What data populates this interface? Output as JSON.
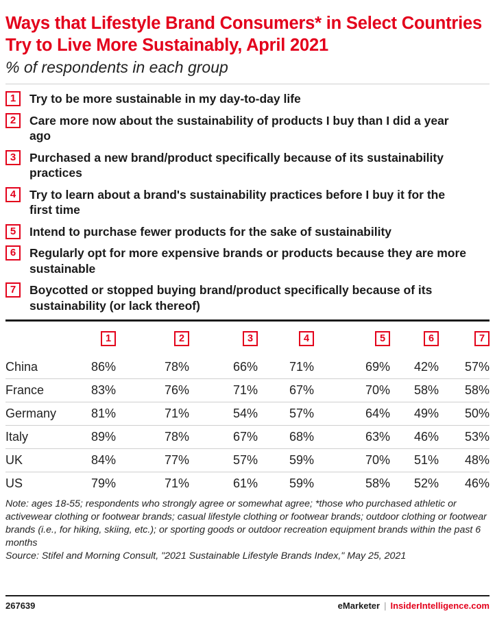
{
  "chart_data": {
    "type": "table",
    "title": "Ways that Lifestyle Brand Consumers* in Select Countries Try to Live More Sustainably, April 2021",
    "subtitle": "% of respondents in each group",
    "legend": [
      {
        "num": "1",
        "text": "Try to be more sustainable in my day-to-day life"
      },
      {
        "num": "2",
        "text": "Care more now about the sustainability of products I buy than I did a year ago"
      },
      {
        "num": "3",
        "text": "Purchased a new brand/product specifically because of its sustainability practices"
      },
      {
        "num": "4",
        "text": "Try to learn about a brand's sustainability practices before I buy it for the first time"
      },
      {
        "num": "5",
        "text": "Intend to purchase fewer products for the sake of sustainability"
      },
      {
        "num": "6",
        "text": "Regularly opt for more expensive brands or products because they are more sustainable"
      },
      {
        "num": "7",
        "text": "Boycotted or stopped buying brand/product specifically because of its sustainability (or lack thereof)"
      }
    ],
    "columns": [
      "1",
      "2",
      "3",
      "4",
      "5",
      "6",
      "7"
    ],
    "rows": [
      {
        "country": "China",
        "values": [
          "86%",
          "78%",
          "66%",
          "71%",
          "69%",
          "42%",
          "57%"
        ]
      },
      {
        "country": "France",
        "values": [
          "83%",
          "76%",
          "71%",
          "67%",
          "70%",
          "58%",
          "58%"
        ]
      },
      {
        "country": "Germany",
        "values": [
          "81%",
          "71%",
          "54%",
          "57%",
          "64%",
          "49%",
          "50%"
        ]
      },
      {
        "country": "Italy",
        "values": [
          "89%",
          "78%",
          "67%",
          "68%",
          "63%",
          "46%",
          "53%"
        ]
      },
      {
        "country": "UK",
        "values": [
          "84%",
          "77%",
          "57%",
          "59%",
          "70%",
          "51%",
          "48%"
        ]
      },
      {
        "country": "US",
        "values": [
          "79%",
          "71%",
          "61%",
          "59%",
          "58%",
          "52%",
          "46%"
        ]
      }
    ],
    "note": "Note: ages 18-55; respondents who strongly agree or somewhat agree; *those who purchased athletic or activewear clothing or footwear brands; casual lifestyle clothing or footwear brands; outdoor clothing or footwear brands (i.e., for hiking, skiing, etc.); or sporting goods or outdoor recreation equipment brands within the past 6 months",
    "source": "Source: Stifel and Morning Consult, \"2021 Sustainable Lifestyle Brands Index,\" May 25, 2021"
  },
  "footer": {
    "id": "267639",
    "brand": "eMarketer",
    "separator": "|",
    "site": "InsiderIntelligence.com"
  },
  "colors": {
    "accent": "#e3001b",
    "text": "#1a1a1a",
    "rule": "#cfcfcf"
  }
}
